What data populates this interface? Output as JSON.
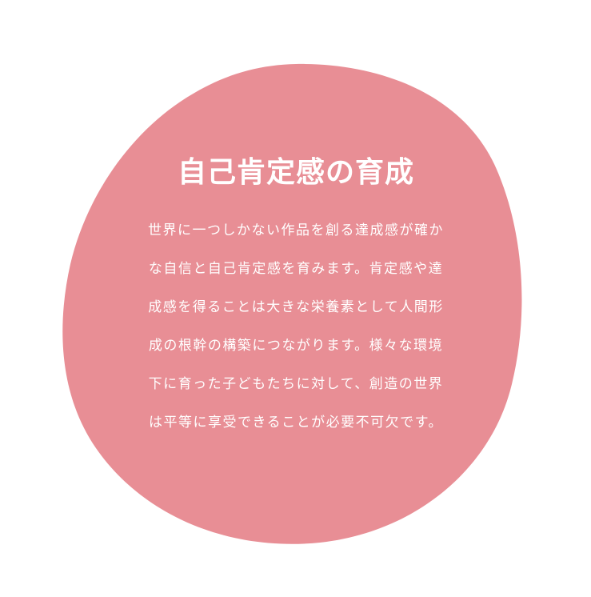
{
  "colors": {
    "blob": "#e88e95",
    "text": "#ffffff",
    "background": "#ffffff"
  },
  "heading": "自己肯定感の育成",
  "body_lines": [
    "世界に一つしかない作品を創る達成感が確か",
    "な自信と自己肯定感を育みます。肯定感や達",
    "成感を得ることは大きな栄養素として人間形",
    "成の根幹の構築につながります。様々な環境",
    "下に育った子どもたちに対して、創造の世界",
    "は平等に享受できることが必要不可欠です。"
  ]
}
